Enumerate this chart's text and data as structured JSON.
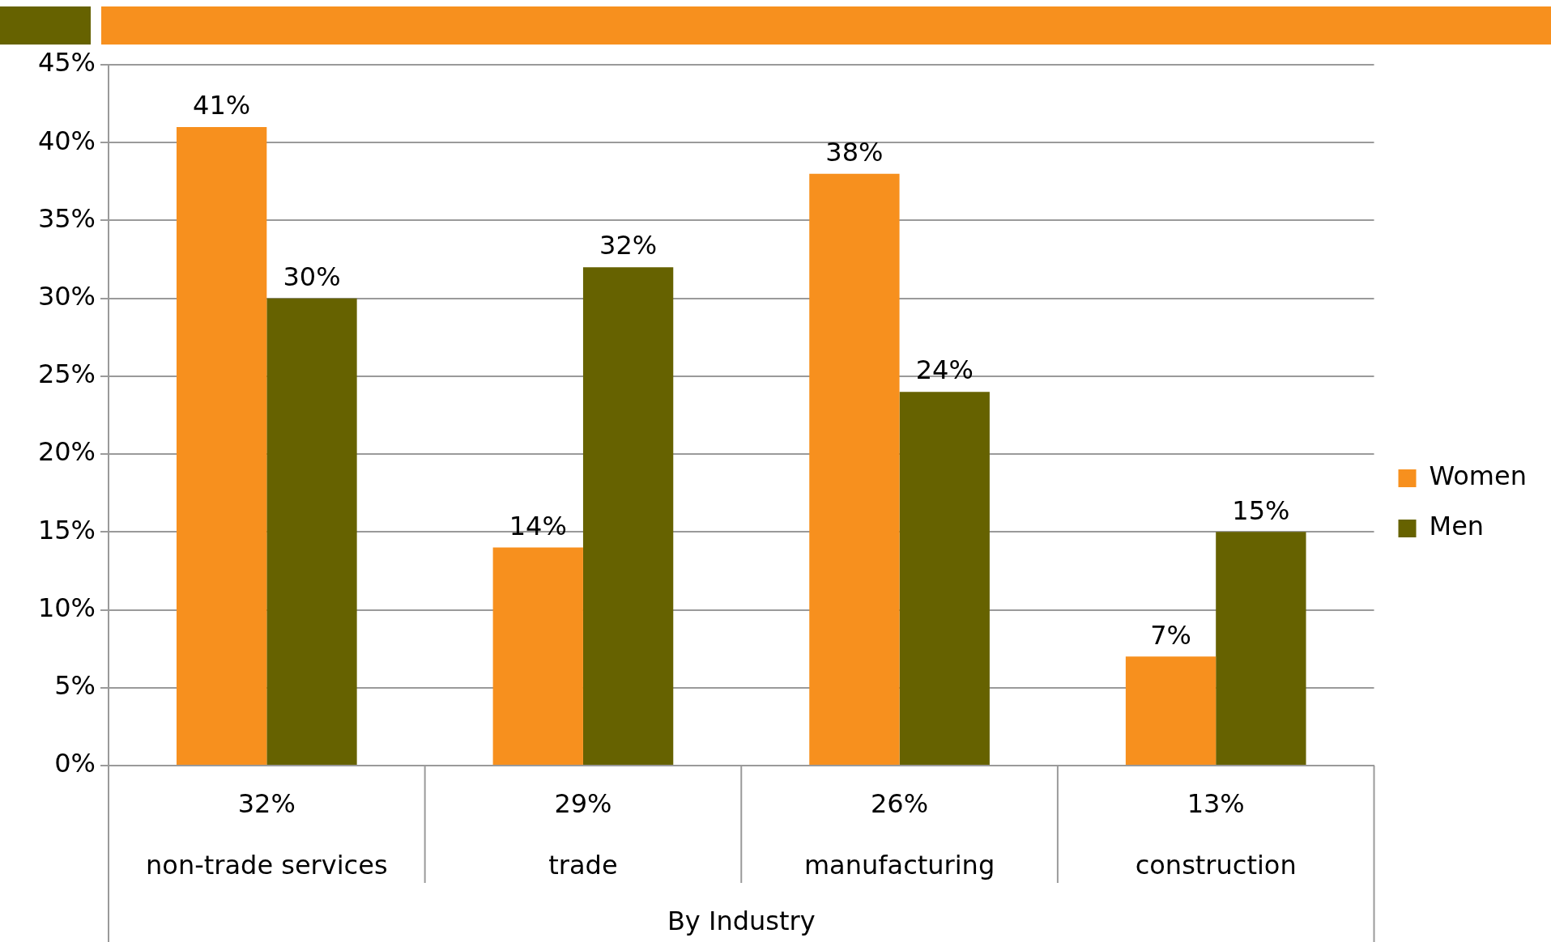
{
  "chart_data": {
    "type": "bar",
    "xlabel": "By Industry",
    "categories": [
      "non-trade services",
      "trade",
      "manufacturing",
      "construction"
    ],
    "series": [
      {
        "name": "Women",
        "color": "#f7901e",
        "values": [
          41,
          14,
          38,
          7
        ],
        "value_labels": [
          "41%",
          "14%",
          "38%",
          "7%"
        ]
      },
      {
        "name": "Men",
        "color": "#666200",
        "values": [
          30,
          32,
          24,
          15
        ],
        "value_labels": [
          "30%",
          "32%",
          "24%",
          "15%"
        ]
      }
    ],
    "ylim": [
      0,
      45
    ],
    "yticks": [
      {
        "value": 0,
        "label": "0%"
      },
      {
        "value": 5,
        "label": "5%"
      },
      {
        "value": 10,
        "label": "10%"
      },
      {
        "value": 15,
        "label": "15%"
      },
      {
        "value": 20,
        "label": "20%"
      },
      {
        "value": 25,
        "label": "25%"
      },
      {
        "value": 30,
        "label": "30%"
      },
      {
        "value": 35,
        "label": "35%"
      },
      {
        "value": 40,
        "label": "40%"
      },
      {
        "value": 45,
        "label": "45%"
      }
    ],
    "grid": "y",
    "legend": "right",
    "annotations": [
      "32%",
      "29%",
      "26%",
      "13%"
    ]
  }
}
